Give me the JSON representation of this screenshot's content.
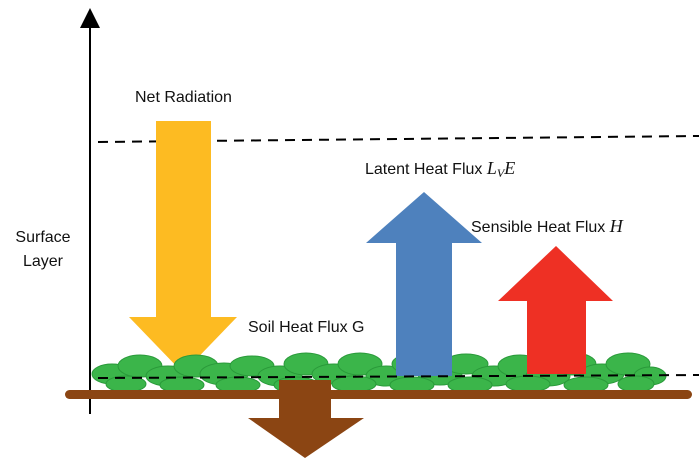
{
  "labels": {
    "net_radiation": "Net Radiation",
    "latent_heat_text": "Latent Heat Flux",
    "latent_heat_symbol_main": "L",
    "latent_heat_symbol_sub": "V",
    "latent_heat_symbol_tail": "E",
    "sensible_heat_text": "Sensible Heat Flux",
    "sensible_heat_symbol": "H",
    "soil_heat": "Soil Heat Flux G",
    "surface_line1": "Surface",
    "surface_line2": "Layer"
  },
  "colors": {
    "net_radiation_arrow": "#FDBB22",
    "latent_heat_arrow": "#4E81BD",
    "sensible_heat_arrow": "#EE3024",
    "soil_heat_arrow": "#8B4513",
    "soil_bar": "#8B4513",
    "vegetation": "#3BB54A",
    "vegetation_outline": "#2A9A3A"
  }
}
